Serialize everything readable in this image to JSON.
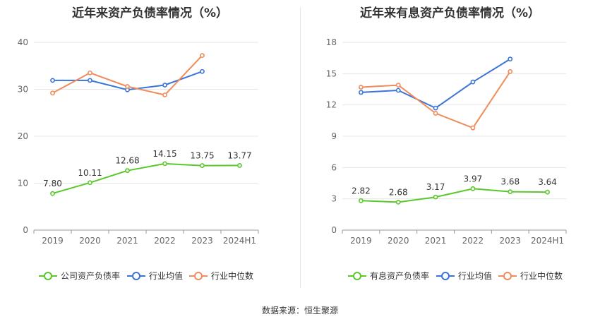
{
  "colors": {
    "company": "#5ac72c",
    "industry_avg": "#3a74d9",
    "industry_median": "#f08b5a",
    "grid": "#e6e6e6",
    "axis_text": "#666666"
  },
  "source": "数据来源：恒生聚源",
  "chart_data": [
    {
      "type": "line",
      "title": "近年来资产负债率情况（%）",
      "categories": [
        "2019",
        "2020",
        "2021",
        "2022",
        "2023",
        "2024H1"
      ],
      "ylim": [
        0,
        40
      ],
      "yticks": [
        0,
        10,
        20,
        30,
        40
      ],
      "grid": true,
      "legend_position": "bottom",
      "series": [
        {
          "name": "公司资产负债率",
          "color_key": "company",
          "values": [
            7.8,
            10.11,
            12.68,
            14.15,
            13.75,
            13.77
          ],
          "labels": [
            "7.80",
            "10.11",
            "12.68",
            "14.15",
            "13.75",
            "13.77"
          ]
        },
        {
          "name": "行业均值",
          "color_key": "industry_avg",
          "values": [
            31.9,
            31.9,
            29.9,
            30.9,
            33.8,
            null
          ]
        },
        {
          "name": "行业中位数",
          "color_key": "industry_median",
          "values": [
            29.2,
            33.5,
            30.6,
            28.8,
            37.2,
            null
          ]
        }
      ]
    },
    {
      "type": "line",
      "title": "近年来有息资产负债率情况（%）",
      "categories": [
        "2019",
        "2020",
        "2021",
        "2022",
        "2023",
        "2024H1"
      ],
      "ylim": [
        0,
        18
      ],
      "yticks": [
        0,
        3,
        6,
        9,
        12,
        15,
        18
      ],
      "grid": true,
      "legend_position": "bottom",
      "series": [
        {
          "name": "有息资产负债率",
          "color_key": "company",
          "values": [
            2.82,
            2.68,
            3.17,
            3.97,
            3.68,
            3.64
          ],
          "labels": [
            "2.82",
            "2.68",
            "3.17",
            "3.97",
            "3.68",
            "3.64"
          ]
        },
        {
          "name": "行业均值",
          "color_key": "industry_avg",
          "values": [
            13.2,
            13.4,
            11.7,
            14.2,
            16.4,
            null
          ]
        },
        {
          "name": "行业中位数",
          "color_key": "industry_median",
          "values": [
            13.7,
            13.9,
            11.2,
            9.8,
            15.2,
            null
          ]
        }
      ]
    }
  ]
}
